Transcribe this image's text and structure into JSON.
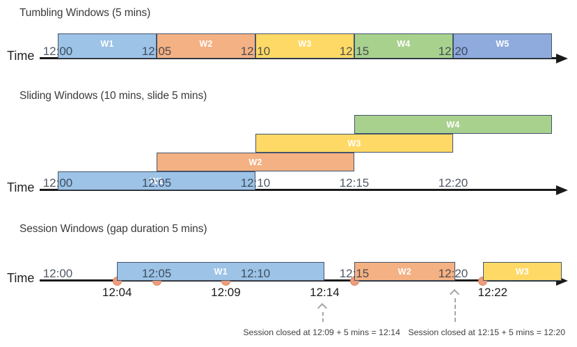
{
  "palette": {
    "blue": "#9DC3E6",
    "orange": "#F4B183",
    "yellow": "#FFD966",
    "green": "#A9D18E",
    "periwinkle": "#8FAADC",
    "bar_border": "#44546A",
    "axis": "#1A1A1A",
    "event_dot": "#EE9C7C",
    "event_dot_border": "#DB8861",
    "annotation_arrow": "#A6A6A6"
  },
  "sections": [
    {
      "id": "tumbling",
      "title": "Tumbling Windows (5 mins)",
      "time_label": "Time",
      "ticks": [
        {
          "label": "12:00",
          "min": 0
        },
        {
          "label": "12:05",
          "min": 5
        },
        {
          "label": "12:10",
          "min": 10
        },
        {
          "label": "12:15",
          "min": 15
        },
        {
          "label": "12:20",
          "min": 20
        }
      ],
      "windows": [
        {
          "label": "W1",
          "start_min": 0,
          "end_min": 5,
          "color": "blue"
        },
        {
          "label": "W2",
          "start_min": 5,
          "end_min": 10,
          "color": "orange"
        },
        {
          "label": "W3",
          "start_min": 10,
          "end_min": 15,
          "color": "yellow"
        },
        {
          "label": "W4",
          "start_min": 15,
          "end_min": 20,
          "color": "green"
        },
        {
          "label": "W5",
          "start_min": 20,
          "end_min": 25,
          "color": "periwinkle"
        }
      ]
    },
    {
      "id": "sliding",
      "title": "Sliding Windows (10 mins, slide 5 mins)",
      "time_label": "Time",
      "ticks": [
        {
          "label": "12:00",
          "min": 0
        },
        {
          "label": "12:05",
          "min": 5
        },
        {
          "label": "12:10",
          "min": 10
        },
        {
          "label": "12:15",
          "min": 15
        },
        {
          "label": "12:20",
          "min": 20
        }
      ],
      "windows": [
        {
          "label": "W1",
          "start_min": 0,
          "end_min": 10,
          "color": "blue",
          "level": 0
        },
        {
          "label": "W2",
          "start_min": 5,
          "end_min": 15,
          "color": "orange",
          "level": 1
        },
        {
          "label": "W3",
          "start_min": 10,
          "end_min": 20,
          "color": "yellow",
          "level": 2
        },
        {
          "label": "W4",
          "start_min": 15,
          "end_min": 25,
          "color": "green",
          "level": 3
        }
      ]
    },
    {
      "id": "session",
      "title": "Session Windows (gap duration 5 mins)",
      "time_label": "Time",
      "ticks": [
        {
          "label": "12:00",
          "min": 0
        },
        {
          "label": "12:05",
          "min": 5
        },
        {
          "label": "12:10",
          "min": 10
        },
        {
          "label": "12:15",
          "min": 15
        },
        {
          "label": "12:20",
          "min": 20
        }
      ],
      "windows": [
        {
          "label": "W1",
          "start_min": 3,
          "end_min": 13.5,
          "color": "blue"
        },
        {
          "label": "W2",
          "start_min": 15,
          "end_min": 20.1,
          "color": "orange"
        },
        {
          "label": "W3",
          "start_min": 21.5,
          "end_min": 25.5,
          "color": "yellow"
        }
      ],
      "events": [
        {
          "min": 3
        },
        {
          "min": 5
        },
        {
          "min": 8.5
        },
        {
          "min": 15
        },
        {
          "min": 21.5
        }
      ],
      "event_labels": [
        {
          "label": "12:04",
          "min": 3
        },
        {
          "label": "12:09",
          "min": 8.5
        },
        {
          "label": "12:14",
          "min": 13.5
        },
        {
          "label": "12:22",
          "min": 22
        }
      ],
      "annotations": [
        {
          "text": "Session closed at 12:09 + 5 mins = 12:14",
          "text_min": 13.35,
          "arrow_min": 13.4
        },
        {
          "text": "Session closed at 12:15 + 5 mins = 12:20",
          "text_min": 21.7,
          "arrow_min": 20.1
        }
      ]
    }
  ]
}
